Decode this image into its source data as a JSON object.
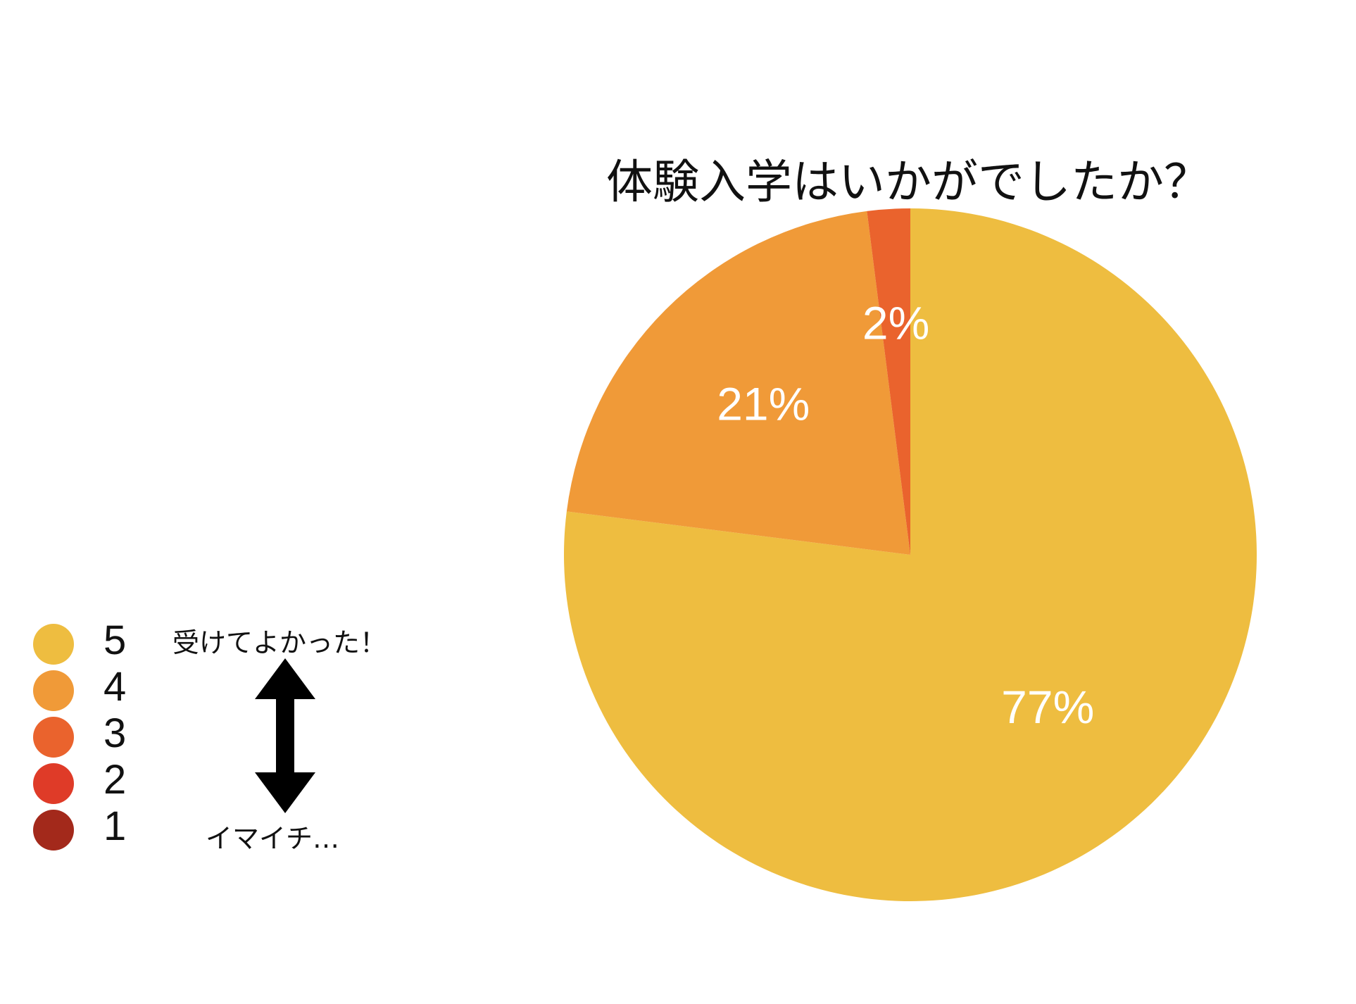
{
  "chart_data": {
    "type": "pie",
    "title": "体験入学はいかがでしたか？",
    "slices": [
      {
        "category": "5",
        "value": 77,
        "label": "77%",
        "color": "#EEBD40"
      },
      {
        "category": "4",
        "value": 21,
        "label": "21%",
        "color": "#F09A38"
      },
      {
        "category": "3",
        "value": 2,
        "label": "2%",
        "color": "#EA632D"
      },
      {
        "category": "2",
        "value": 0,
        "label": "",
        "color": "#DF3B28"
      },
      {
        "category": "1",
        "value": 0,
        "label": "",
        "color": "#A3291B"
      }
    ],
    "legend": {
      "placement": "left",
      "items": [
        "5",
        "4",
        "3",
        "2",
        "1"
      ],
      "colors": [
        "#EEBD40",
        "#F09A38",
        "#EA632D",
        "#DF3B28",
        "#A3291B"
      ]
    },
    "scale_notes": {
      "top": "受けてよかった！",
      "bottom": "イマイチ…"
    }
  }
}
